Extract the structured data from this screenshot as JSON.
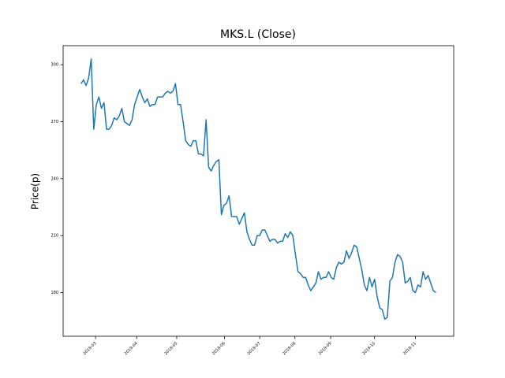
{
  "chart_data": {
    "type": "line",
    "title": "MKS.L (Close)",
    "y_label": "Price(p)",
    "color": "#1f77b4",
    "values": [
      290,
      292,
      289,
      293,
      303,
      266,
      279,
      283,
      277,
      280,
      266,
      266,
      268,
      272,
      271,
      273,
      277,
      270,
      269,
      268,
      271,
      279,
      283,
      287,
      283,
      280,
      282,
      278,
      279,
      279,
      283,
      283,
      283,
      285,
      286,
      285,
      286,
      290,
      279,
      279,
      270,
      260,
      258,
      257,
      260,
      260,
      253,
      253,
      252,
      271,
      246,
      244,
      247,
      249,
      250,
      221,
      226,
      227,
      231,
      220,
      220,
      220,
      216,
      219,
      222,
      212,
      208,
      205,
      205,
      210,
      210,
      213,
      213,
      210,
      207,
      208,
      208,
      206,
      207,
      207,
      211,
      209,
      212,
      210,
      200,
      191,
      190,
      188,
      188,
      184,
      181,
      183,
      185,
      191,
      187,
      188,
      188,
      191,
      188,
      187,
      193,
      196,
      195,
      196,
      202,
      198,
      201,
      205,
      204,
      198,
      192,
      184,
      181,
      188,
      183,
      187,
      178,
      172,
      171,
      166,
      167,
      186,
      188,
      196,
      200,
      199,
      196,
      185,
      186,
      188,
      181,
      180,
      184,
      183,
      191,
      187,
      189,
      185,
      181,
      180
    ],
    "xlim": [
      -7,
      146
    ],
    "xticks": [
      {
        "value": 5.7,
        "label": "2019-03"
      },
      {
        "value": 21.8,
        "label": "2019-04"
      },
      {
        "value": 37.5,
        "label": "2019-05"
      },
      {
        "value": 56.2,
        "label": "2019-06"
      },
      {
        "value": 70,
        "label": "2019-07"
      },
      {
        "value": 83.8,
        "label": "2019-08"
      },
      {
        "value": 97.8,
        "label": "2019-09"
      },
      {
        "value": 115,
        "label": "2019-10"
      },
      {
        "value": 131,
        "label": "2019-11"
      }
    ],
    "ylim": [
      157,
      310
    ],
    "yticks": [
      180,
      210,
      240,
      270,
      300
    ]
  }
}
